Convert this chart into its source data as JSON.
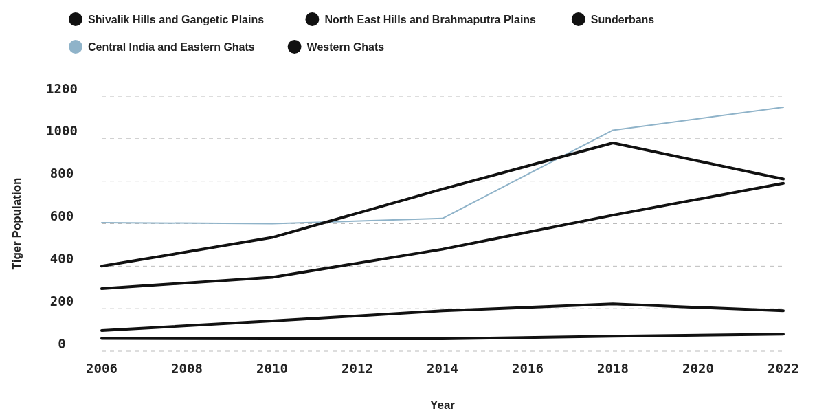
{
  "chart_data": {
    "type": "line",
    "xlabel": "Year",
    "ylabel": "Tiger Population",
    "x": [
      2006,
      2010,
      2014,
      2018,
      2022
    ],
    "series": [
      {
        "name": "Shivalik Hills and Gangetic Plains",
        "color": "#111111",
        "values": [
          294,
          348,
          480,
          640,
          790
        ]
      },
      {
        "name": "North East Hills and Brahmaputra Plains",
        "color": "#111111",
        "values": [
          97,
          142,
          190,
          222,
          190
        ]
      },
      {
        "name": "Sunderbans",
        "color": "#111111",
        "values": [
          60,
          58,
          58,
          70,
          80
        ]
      },
      {
        "name": "Central India and Eastern Ghats",
        "color": "#8fb3c9",
        "values": [
          605,
          600,
          625,
          1040,
          1148
        ]
      },
      {
        "name": "Western Ghats",
        "color": "#111111",
        "values": [
          400,
          535,
          763,
          980,
          810
        ]
      }
    ],
    "xlim": [
      2006,
      2022
    ],
    "xticks": [
      2006,
      2008,
      2010,
      2012,
      2014,
      2016,
      2018,
      2020,
      2022
    ],
    "ylim": [
      0,
      1200
    ],
    "yticks": [
      0,
      200,
      400,
      600,
      800,
      1000,
      1200
    ],
    "grid": "y",
    "legend": "top",
    "marker": "none",
    "line_style": "solid"
  }
}
